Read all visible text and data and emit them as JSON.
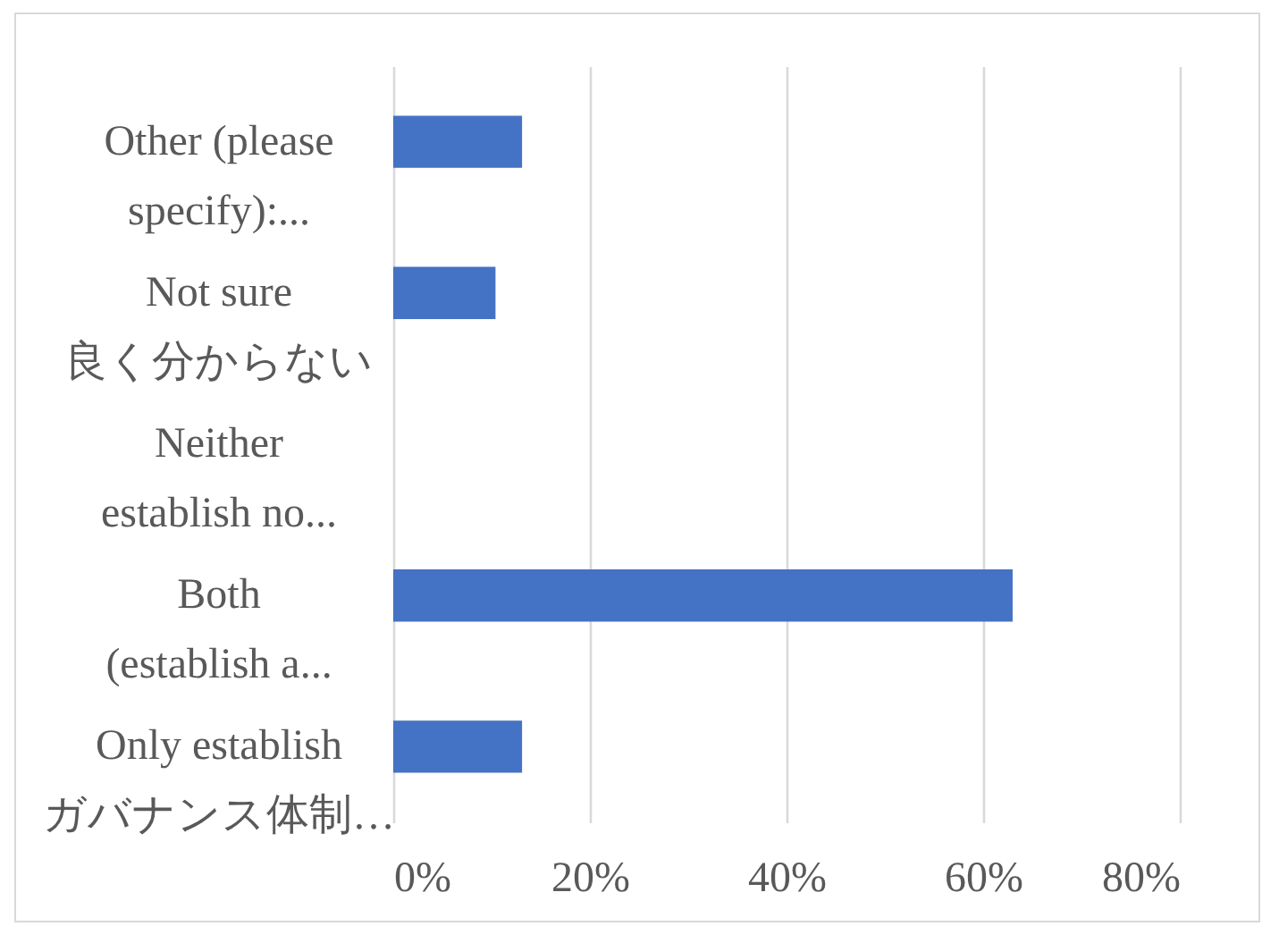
{
  "chart_data": {
    "type": "bar",
    "orientation": "horizontal",
    "categories": [
      "Other (please\nspecify):...",
      "Not sure\n良く分からない",
      "Neither\nestablish no...",
      "Both\n(establish a...",
      "Only establish\nガバナンス体制…"
    ],
    "values": [
      13.1,
      10.4,
      0,
      63,
      13.1
    ],
    "color": "#4472c4",
    "xlim": [
      0,
      80
    ],
    "xticks": [
      {
        "value": 0,
        "label": "0%"
      },
      {
        "value": 20,
        "label": "20%"
      },
      {
        "value": 40,
        "label": "40%"
      },
      {
        "value": 60,
        "label": "60%"
      },
      {
        "value": 80,
        "label": "80%"
      }
    ],
    "grid": "x"
  }
}
